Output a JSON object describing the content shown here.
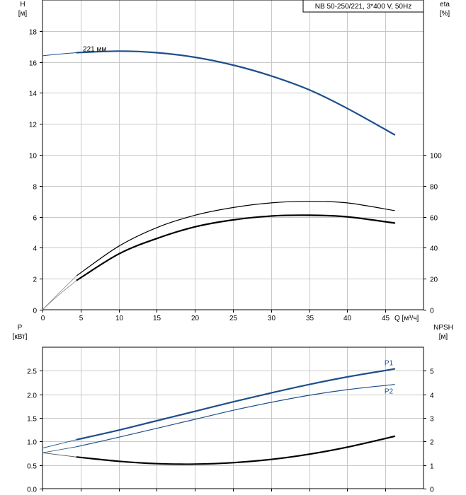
{
  "title": "NB 50-250/221, 3*400 V, 50Hz",
  "chart_data": [
    {
      "type": "line",
      "name": "top-panel",
      "x_label": "Q [м³/ч]",
      "left_axis": {
        "label_top": "H",
        "label_unit": "[м]",
        "range": [
          0,
          20
        ],
        "ticks": [
          0,
          2,
          4,
          6,
          8,
          10,
          12,
          14,
          16,
          18
        ]
      },
      "right_axis": {
        "label_top": "eta",
        "label_unit": "[%]",
        "range": [
          0,
          200
        ],
        "ticks": [
          0,
          20,
          40,
          60,
          80,
          100
        ]
      },
      "x_range": [
        0,
        50
      ],
      "x_ticks": [
        0,
        5,
        10,
        15,
        20,
        25,
        30,
        35,
        40,
        45
      ],
      "annotations": [
        {
          "text": "221 мм",
          "x": 5.3,
          "y": 16.7
        }
      ],
      "series": [
        {
          "id": "head",
          "axis": "left",
          "color": "#1f4f8a",
          "width": 2.2,
          "x": [
            4.5,
            10,
            15,
            20,
            25,
            30,
            35,
            40,
            46.2
          ],
          "y": [
            16.6,
            16.7,
            16.6,
            16.3,
            15.8,
            15.1,
            14.2,
            13.0,
            11.3
          ]
        },
        {
          "id": "head-ext",
          "axis": "left",
          "color": "#1f4f8a",
          "width": 1,
          "x": [
            0,
            2,
            4.5
          ],
          "y": [
            16.4,
            16.5,
            16.6
          ]
        },
        {
          "id": "eta-thin",
          "axis": "right",
          "color": "#000000",
          "width": 1.2,
          "x": [
            4.5,
            10,
            15,
            20,
            25,
            30,
            35,
            40,
            46.2
          ],
          "y": [
            22,
            41,
            53,
            61,
            66,
            69,
            70,
            69,
            64
          ]
        },
        {
          "id": "eta-thin-ext",
          "axis": "right",
          "color": "#888888",
          "width": 0.8,
          "x": [
            0,
            2,
            4.5
          ],
          "y": [
            0,
            10,
            22
          ]
        },
        {
          "id": "eta-bold",
          "axis": "right",
          "color": "#000000",
          "width": 2.2,
          "x": [
            4.5,
            10,
            15,
            20,
            25,
            30,
            35,
            40,
            46.2
          ],
          "y": [
            19,
            36,
            46,
            53.5,
            58,
            60.5,
            61,
            60,
            56
          ]
        },
        {
          "id": "eta-bold-ext",
          "axis": "right",
          "color": "#888888",
          "width": 0.8,
          "x": [
            0,
            2,
            4.5
          ],
          "y": [
            0,
            9,
            19
          ]
        }
      ]
    },
    {
      "type": "line",
      "name": "bottom-panel",
      "left_axis": {
        "label_top": "P",
        "label_unit": "[кВт]",
        "range": [
          0,
          3
        ],
        "ticks": [
          0.0,
          0.5,
          1.0,
          1.5,
          2.0,
          2.5
        ]
      },
      "right_axis": {
        "label_top": "NPSH",
        "label_unit": "[м]",
        "range": [
          0,
          6
        ],
        "ticks": [
          0,
          1,
          2,
          3,
          4,
          5
        ]
      },
      "x_range": [
        0,
        50
      ],
      "x_ticks": [
        0,
        5,
        10,
        15,
        20,
        25,
        30,
        35,
        40,
        45
      ],
      "series": [
        {
          "id": "p1",
          "axis": "left",
          "color": "#1f4f8a",
          "width": 2.2,
          "label": "P1",
          "x": [
            4.5,
            10,
            15,
            20,
            25,
            30,
            35,
            40,
            46.2
          ],
          "y": [
            1.04,
            1.24,
            1.44,
            1.64,
            1.84,
            2.03,
            2.21,
            2.37,
            2.54
          ]
        },
        {
          "id": "p1-ext",
          "axis": "left",
          "color": "#1f4f8a",
          "width": 0.8,
          "x": [
            0,
            4.5
          ],
          "y": [
            0.86,
            1.04
          ]
        },
        {
          "id": "p2",
          "axis": "left",
          "color": "#1f4f8a",
          "width": 1.2,
          "label": "P2",
          "x": [
            4.5,
            10,
            15,
            20,
            25,
            30,
            35,
            40,
            46.2
          ],
          "y": [
            0.89,
            1.09,
            1.28,
            1.47,
            1.66,
            1.83,
            1.98,
            2.1,
            2.21
          ]
        },
        {
          "id": "p2-ext",
          "axis": "left",
          "color": "#1f4f8a",
          "width": 0.8,
          "x": [
            0,
            4.5
          ],
          "y": [
            0.76,
            0.89
          ]
        },
        {
          "id": "npsh",
          "axis": "right",
          "color": "#000000",
          "width": 2.2,
          "x": [
            4.5,
            10,
            15,
            20,
            25,
            30,
            35,
            40,
            46.2
          ],
          "y": [
            1.34,
            1.16,
            1.06,
            1.04,
            1.1,
            1.24,
            1.46,
            1.76,
            2.22
          ]
        },
        {
          "id": "npsh-ext",
          "axis": "right",
          "color": "#555555",
          "width": 0.8,
          "x": [
            0,
            4.5
          ],
          "y": [
            1.52,
            1.34
          ]
        }
      ]
    }
  ]
}
